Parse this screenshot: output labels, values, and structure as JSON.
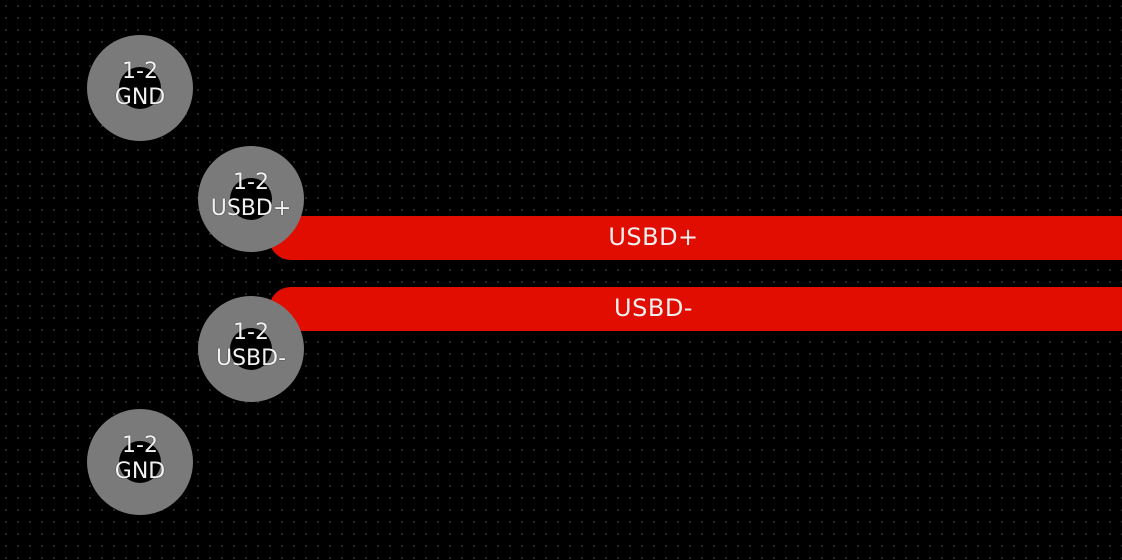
{
  "board": {
    "background_color": "#000000",
    "grid_dot_color": "#3a3a3a",
    "trace_color": "#e00d00",
    "pad_color": "#7a7a7a"
  },
  "traces": [
    {
      "net": "USBD+"
    },
    {
      "net": "USBD-"
    }
  ],
  "pads": [
    {
      "layers": "1-2",
      "net": "GND"
    },
    {
      "layers": "1-2",
      "net": "USBD+"
    },
    {
      "layers": "1-2",
      "net": "USBD-"
    },
    {
      "layers": "1-2",
      "net": "GND"
    }
  ]
}
